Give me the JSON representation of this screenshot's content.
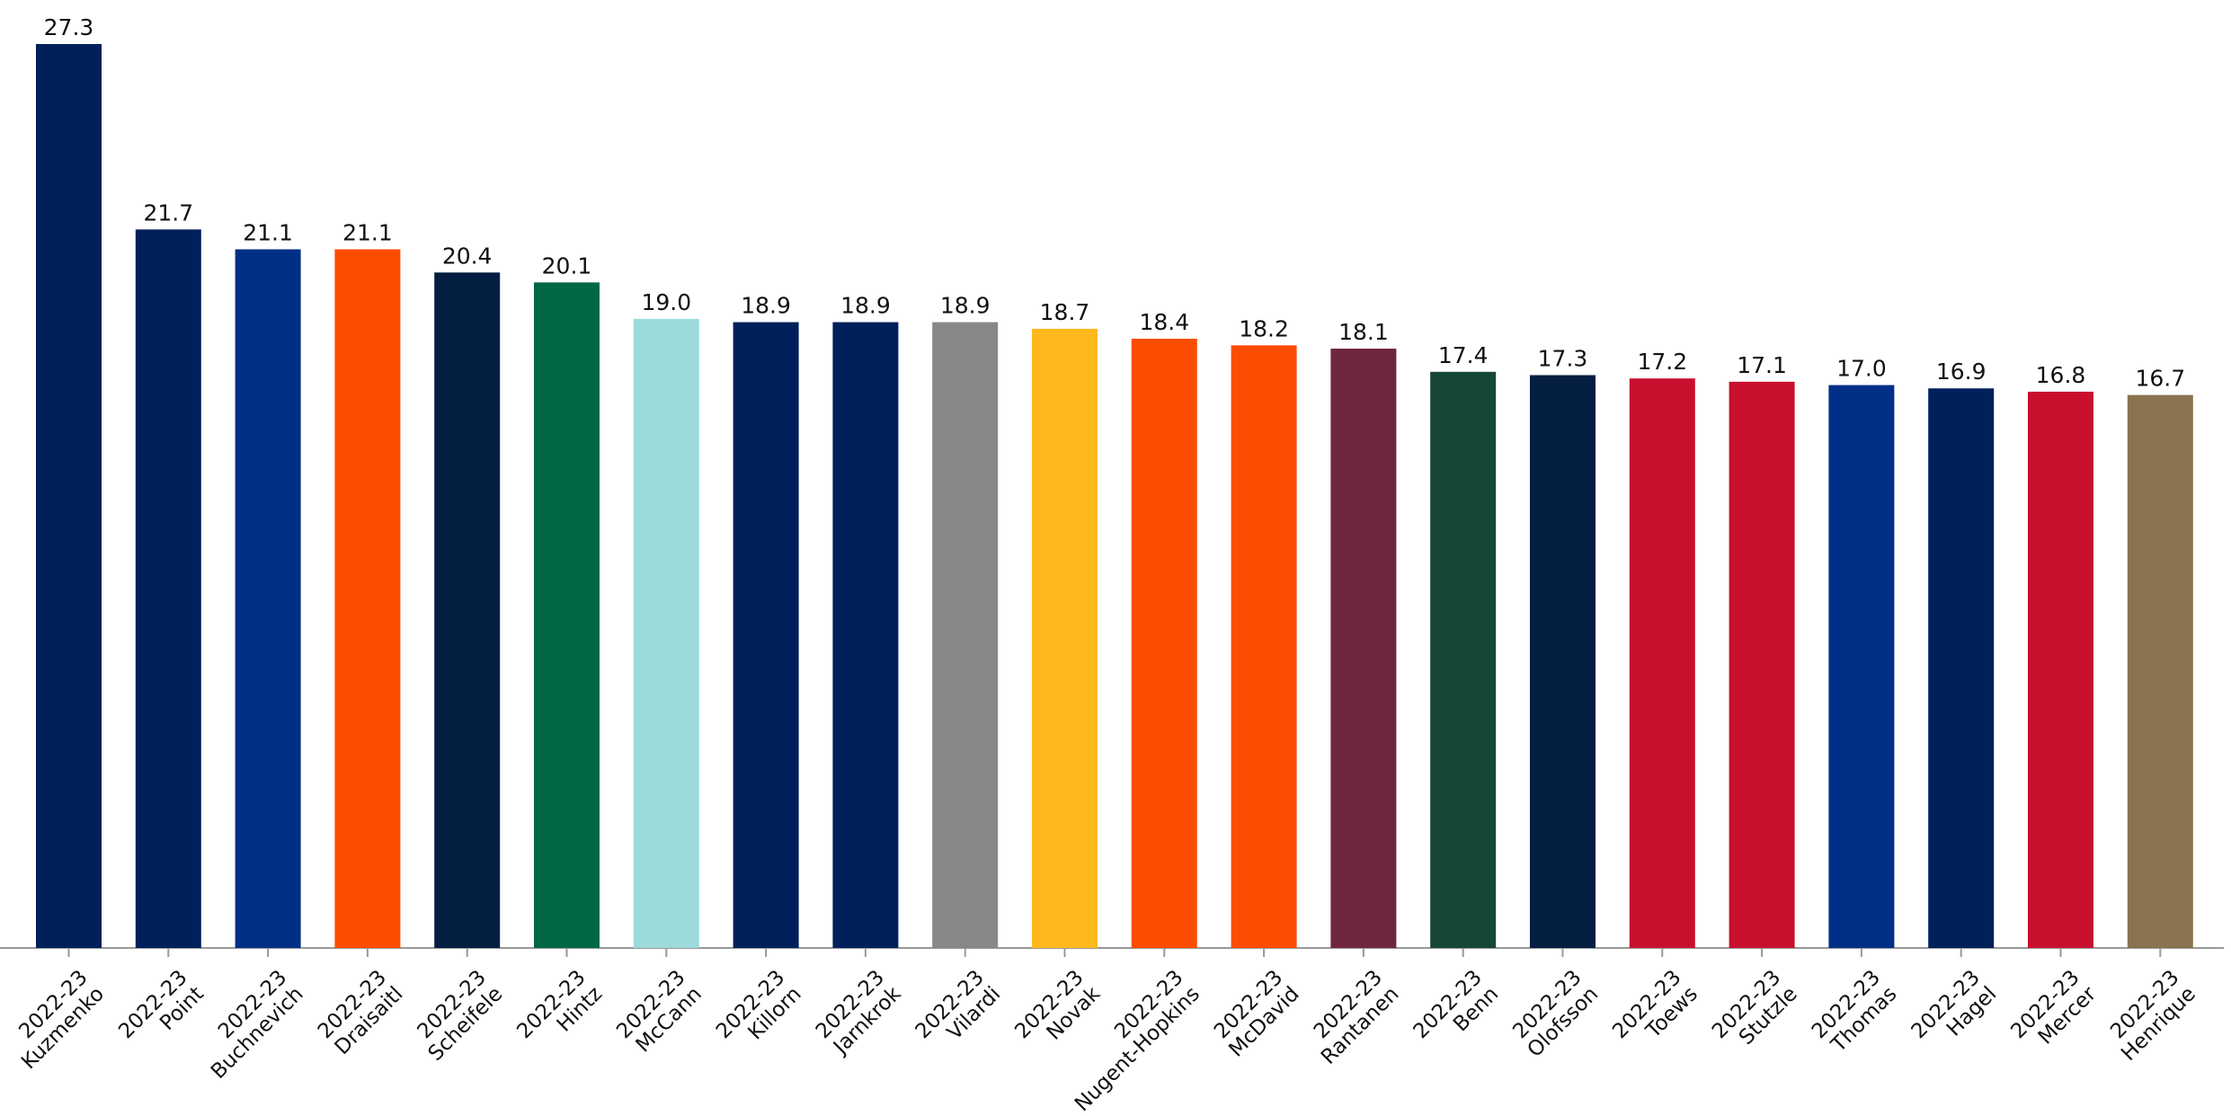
{
  "chart_data": {
    "type": "bar",
    "categories": [
      "Kuzmenko",
      "Point",
      "Buchnevich",
      "Draisaitl",
      "Scheifele",
      "Hintz",
      "McCann",
      "Killorn",
      "Jarnkrok",
      "Vilardi",
      "Novak",
      "Nugent-Hopkins",
      "McDavid",
      "Rantanen",
      "Benn",
      "Olofsson",
      "Toews",
      "Stutzle",
      "Thomas",
      "Hagel",
      "Mercer",
      "Henrique"
    ],
    "seasons": [
      "2022-23",
      "2022-23",
      "2022-23",
      "2022-23",
      "2022-23",
      "2022-23",
      "2022-23",
      "2022-23",
      "2022-23",
      "2022-23",
      "2022-23",
      "2022-23",
      "2022-23",
      "2022-23",
      "2022-23",
      "2022-23",
      "2022-23",
      "2022-23",
      "2022-23",
      "2022-23",
      "2022-23",
      "2022-23"
    ],
    "values": [
      27.3,
      21.7,
      21.1,
      21.1,
      20.4,
      20.1,
      19.0,
      18.9,
      18.9,
      18.9,
      18.7,
      18.4,
      18.2,
      18.1,
      17.4,
      17.3,
      17.2,
      17.1,
      17.0,
      16.9,
      16.8,
      16.7
    ],
    "value_labels": [
      "27.3",
      "21.7",
      "21.1",
      "21.1",
      "20.4",
      "20.1",
      "19.0",
      "18.9",
      "18.9",
      "18.9",
      "18.7",
      "18.4",
      "18.2",
      "18.1",
      "17.4",
      "17.3",
      "17.2",
      "17.1",
      "17.0",
      "16.9",
      "16.8",
      "16.7"
    ],
    "colors": [
      "#00205b",
      "#00205b",
      "#002f87",
      "#fc4c02",
      "#041e42",
      "#006847",
      "#9ddbdb",
      "#00205b",
      "#00205b",
      "#878886",
      "#ffb81c",
      "#fc4c02",
      "#fc4c02",
      "#6f263d",
      "#154734",
      "#041e42",
      "#c8102e",
      "#c8102e",
      "#002f87",
      "#00205b",
      "#c8102e",
      "#8a734f"
    ],
    "ylim": [
      0,
      27.3
    ]
  }
}
